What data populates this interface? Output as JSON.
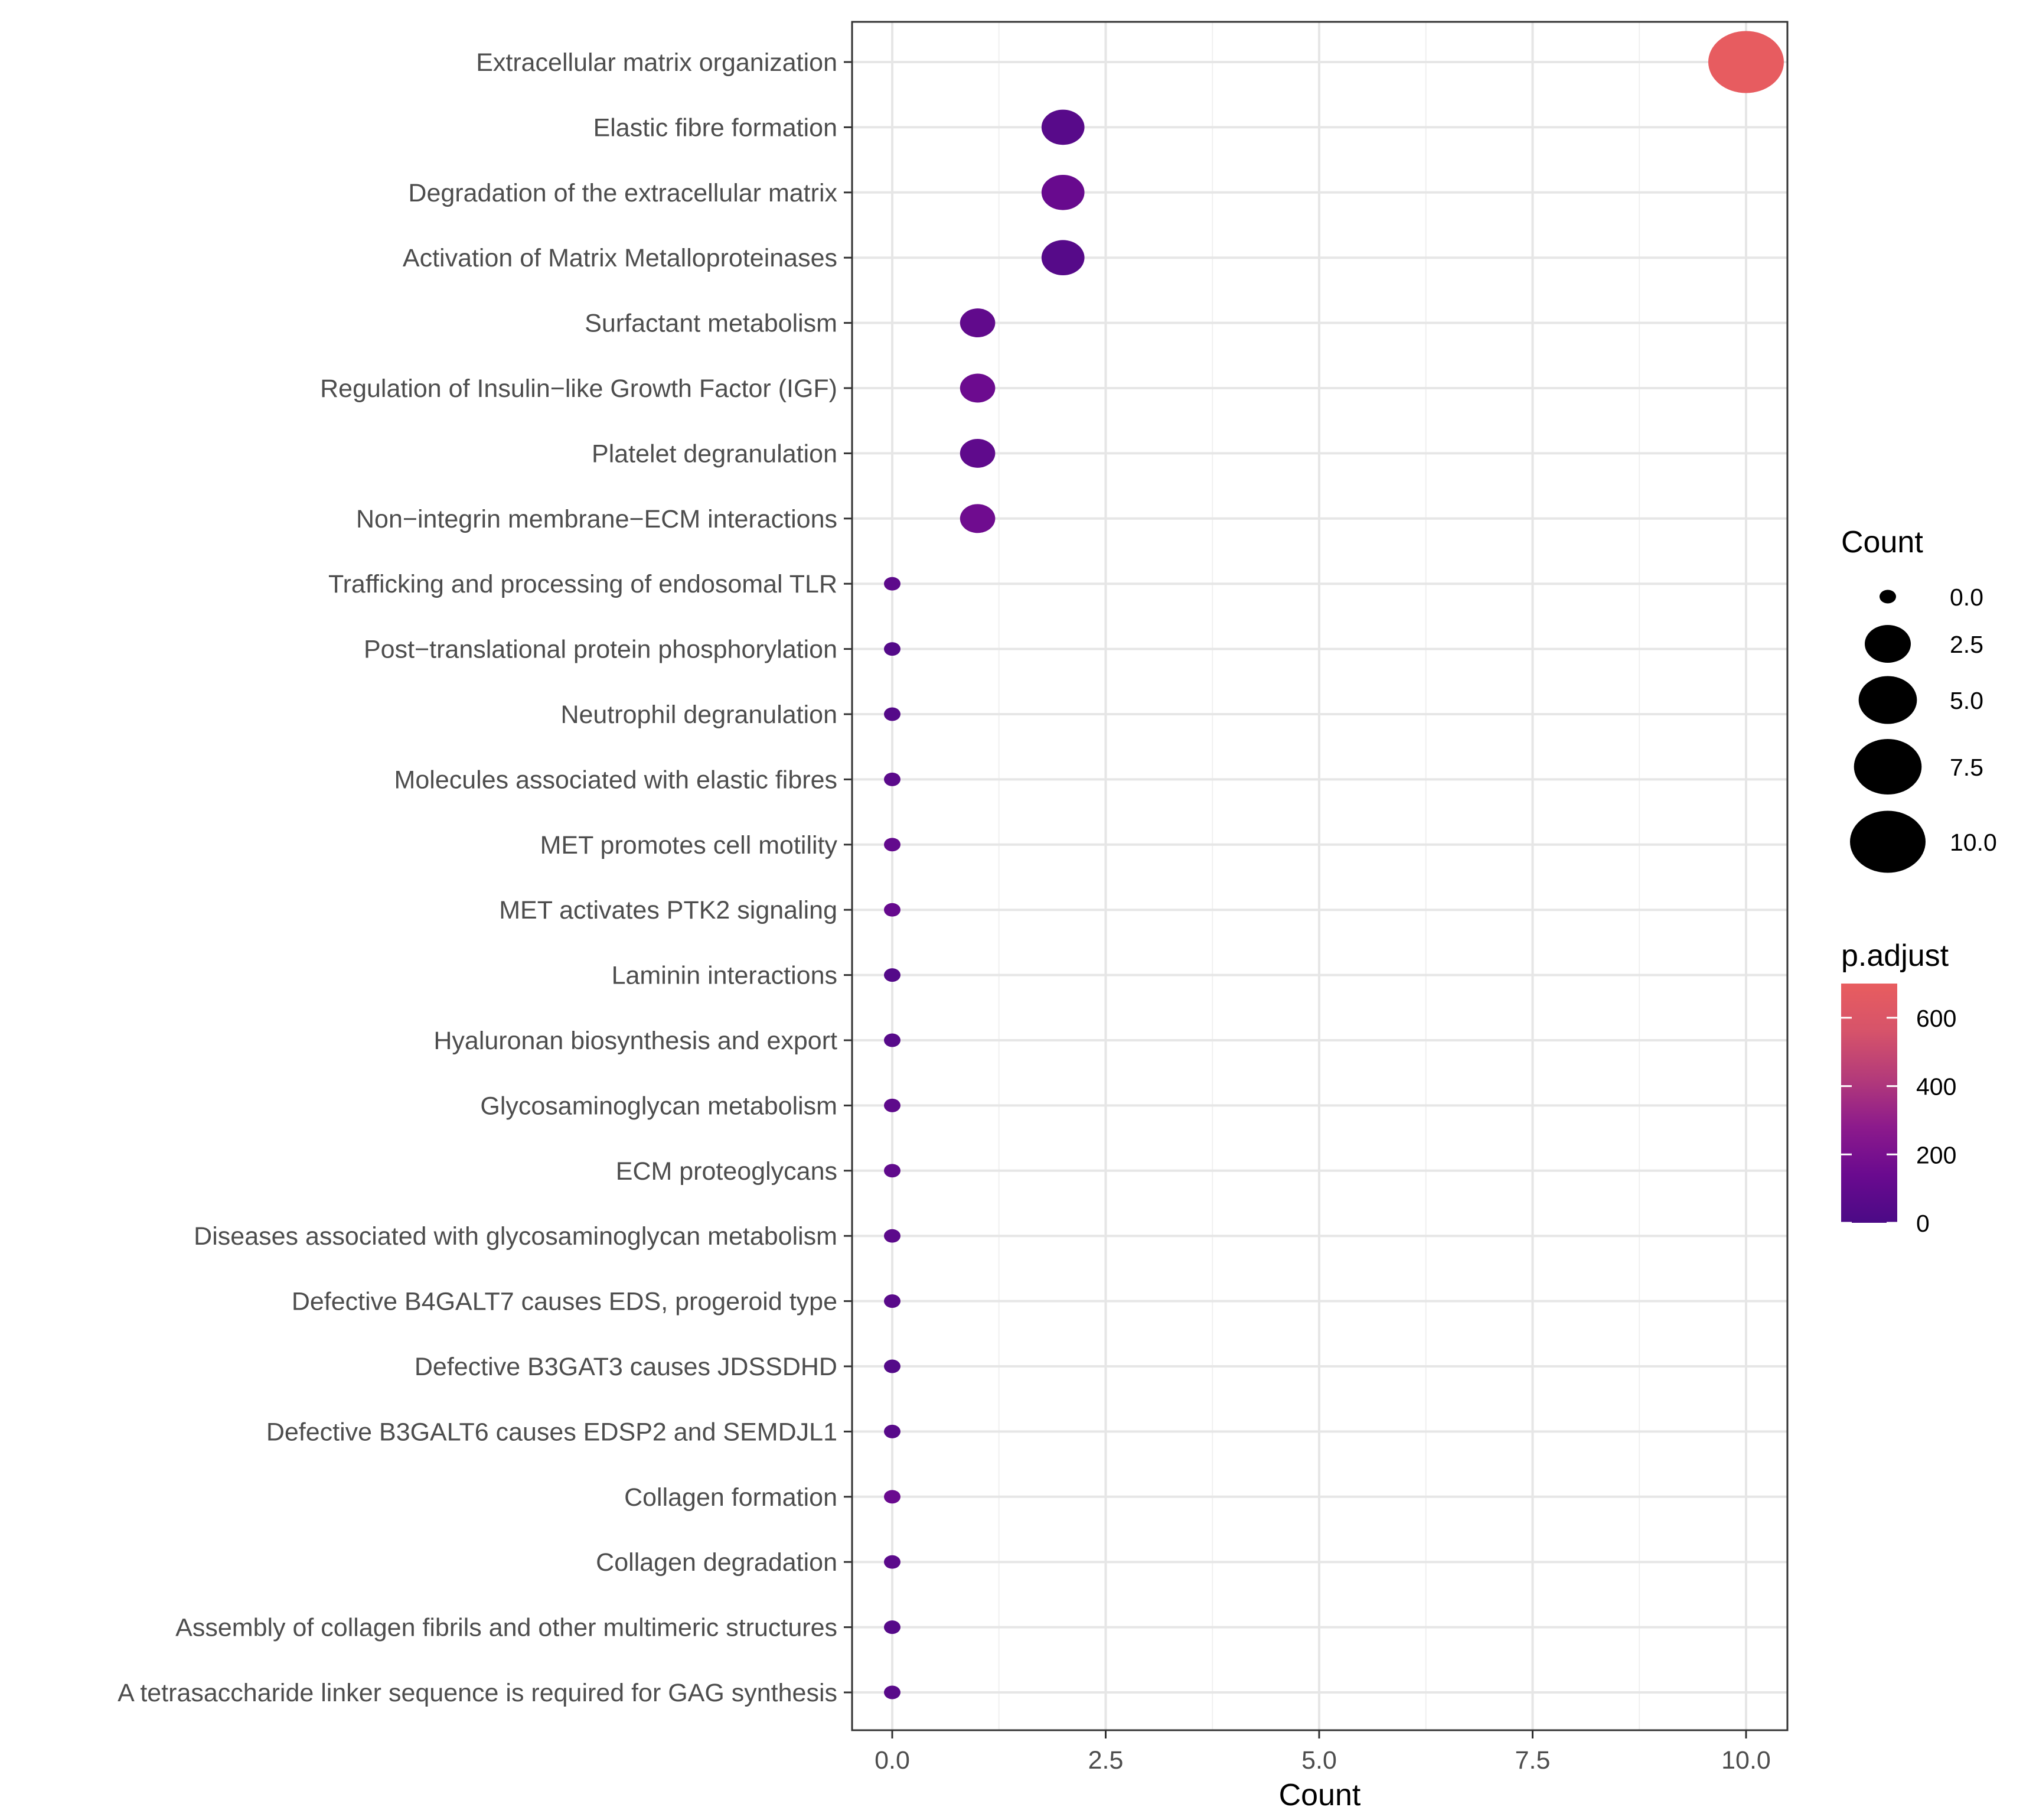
{
  "chart_data": {
    "type": "scatter",
    "xlabel": "Count",
    "xlim": [
      -0.5,
      10.5
    ],
    "x_ticks": [
      0.0,
      2.5,
      5.0,
      7.5,
      10.0
    ],
    "x_tick_labels": [
      "0.0",
      "2.5",
      "5.0",
      "7.5",
      "10.0"
    ],
    "grid": true,
    "legend_position": "right",
    "size_legend": {
      "title": "Count",
      "breaks": [
        0.0,
        2.5,
        5.0,
        7.5,
        10.0
      ],
      "labels": [
        "0.0",
        "2.5",
        "5.0",
        "7.5",
        "10.0"
      ]
    },
    "color_legend": {
      "title": "p.adjust",
      "min": 0,
      "max": 700,
      "breaks": [
        0,
        200,
        400,
        600
      ],
      "labels": [
        "0",
        "200",
        "400",
        "600"
      ],
      "colors": [
        "#4b0a86",
        "#6a0a8f",
        "#8c1a8c",
        "#b33a7a",
        "#d6536a",
        "#e85d5f"
      ]
    },
    "categories": [
      "Extracellular matrix organization",
      "Elastic fibre formation",
      "Degradation of the extracellular matrix",
      "Activation of Matrix Metalloproteinases",
      "Surfactant metabolism",
      "Regulation of Insulin−like Growth Factor (IGF)",
      "Platelet degranulation",
      "Non−integrin membrane−ECM interactions",
      "Trafficking and processing of endosomal TLR",
      "Post−translational protein phosphorylation",
      "Neutrophil degranulation",
      "Molecules associated with elastic fibres",
      "MET promotes cell motility",
      "MET activates PTK2 signaling",
      "Laminin interactions",
      "Hyaluronan biosynthesis and export",
      "Glycosaminoglycan metabolism",
      "ECM proteoglycans",
      "Diseases associated with glycosaminoglycan metabolism",
      "Defective B4GALT7 causes EDS, progeroid type",
      "Defective B3GAT3 causes JDSSDHD",
      "Defective B3GALT6 causes EDSP2 and SEMDJL1",
      "Collagen formation",
      "Collagen degradation",
      "Assembly of collagen fibrils and other multimeric structures",
      "A tetrasaccharide linker sequence is required for GAG synthesis"
    ],
    "series": [
      {
        "x": [
          10,
          2,
          2,
          2,
          1,
          1,
          1,
          1,
          0,
          0,
          0,
          0,
          0,
          0,
          0,
          0,
          0,
          0,
          0,
          0,
          0,
          0,
          0,
          0,
          0,
          0
        ],
        "p_adjust": [
          690,
          60,
          130,
          50,
          100,
          150,
          90,
          160,
          80,
          40,
          45,
          70,
          110,
          120,
          40,
          55,
          85,
          95,
          75,
          65,
          40,
          60,
          140,
          70,
          50,
          65
        ]
      }
    ]
  }
}
